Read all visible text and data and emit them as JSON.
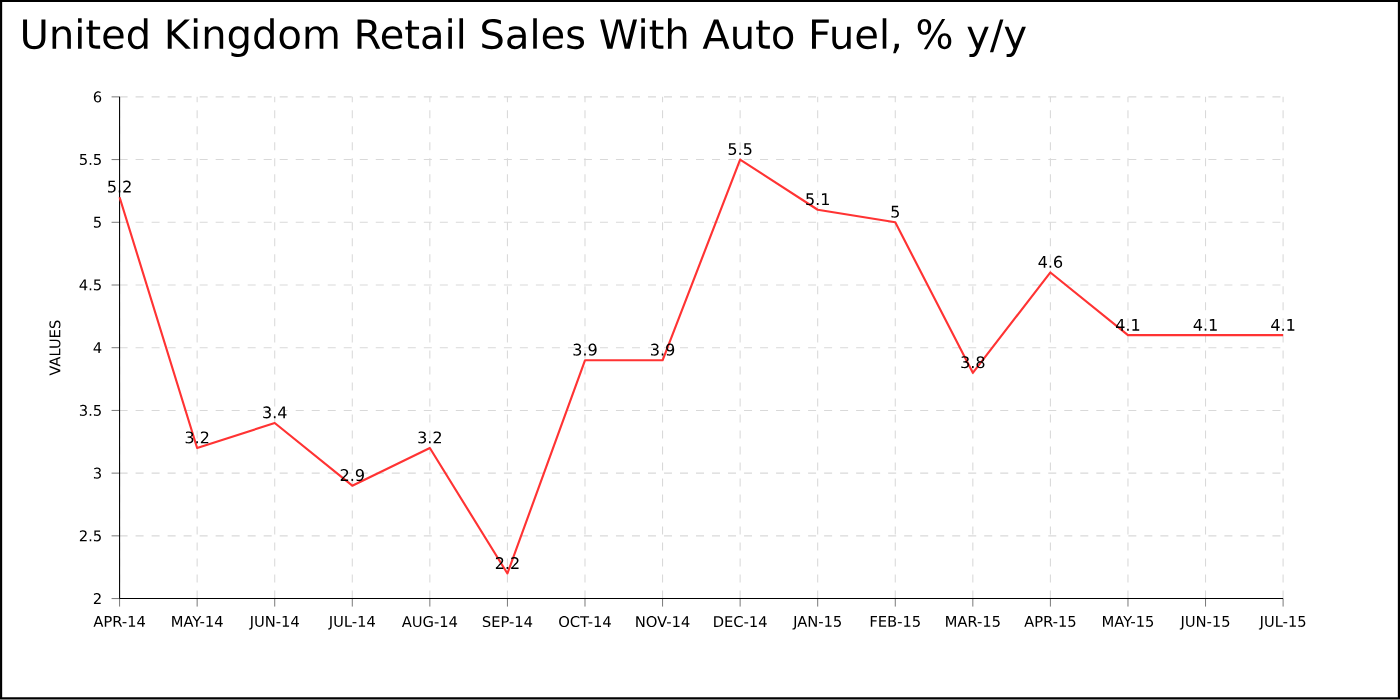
{
  "chart_data": {
    "type": "line",
    "title": "United Kingdom Retail Sales With Auto Fuel, % y/y",
    "ylabel": "VALUES",
    "categories": [
      "APR-14",
      "MAY-14",
      "JUN-14",
      "JUL-14",
      "AUG-14",
      "SEP-14",
      "OCT-14",
      "NOV-14",
      "DEC-14",
      "JAN-15",
      "FEB-15",
      "MAR-15",
      "APR-15",
      "MAY-15",
      "JUN-15",
      "JUL-15"
    ],
    "values": [
      5.2,
      3.2,
      3.4,
      2.9,
      3.2,
      2.2,
      3.9,
      3.9,
      5.5,
      5.1,
      5,
      3.8,
      4.6,
      4.1,
      4.1,
      4.1
    ],
    "color": "#ff3333",
    "ylim": [
      2,
      6
    ],
    "yticks": [
      2,
      2.5,
      3,
      3.5,
      4,
      4.5,
      5,
      5.5,
      6
    ],
    "grid": true,
    "data_labels": true,
    "marker": "none",
    "line_style": "solid"
  }
}
